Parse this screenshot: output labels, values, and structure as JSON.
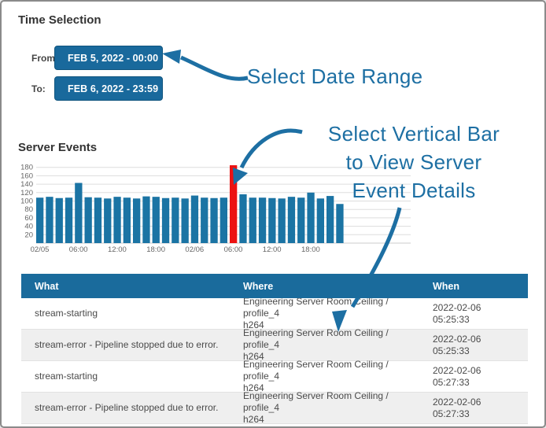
{
  "time_selection": {
    "title": "Time Selection",
    "from_label": "From:",
    "to_label": "To:",
    "from_value": "FEB 5, 2022 - 00:00",
    "to_value": "FEB 6, 2022 - 23:59"
  },
  "annotations": {
    "date_range": "Select Date Range",
    "bar_line1": "Select Vertical Bar",
    "bar_line2": "to View Server",
    "bar_line3": "Event Details"
  },
  "chart_data": {
    "type": "bar",
    "title": "Server Events",
    "x_tick_labels": [
      "02/05",
      "06:00",
      "12:00",
      "18:00",
      "02/06",
      "06:00",
      "12:00",
      "18:00"
    ],
    "values": [
      108,
      110,
      107,
      108,
      143,
      109,
      108,
      106,
      110,
      108,
      106,
      111,
      110,
      107,
      108,
      106,
      113,
      108,
      107,
      108,
      185,
      116,
      108,
      108,
      107,
      106,
      110,
      108,
      120,
      106,
      112,
      93
    ],
    "highlight_index": 20,
    "bar_color": "#1b74a4",
    "highlight_color": "#ec1212",
    "yticks": [
      20,
      40,
      60,
      80,
      100,
      120,
      140,
      160,
      180
    ],
    "ylim": [
      0,
      190
    ],
    "grid": true,
    "legend": false
  },
  "table": {
    "headers": [
      "What",
      "Where",
      "When"
    ],
    "rows": [
      {
        "what": "stream-starting",
        "where": [
          "Engineering Server Room Ceiling / profile_4",
          "h264"
        ],
        "when": [
          "2022-02-06",
          "05:25:33"
        ]
      },
      {
        "what": "stream-error - Pipeline stopped due to error.",
        "where": [
          "Engineering Server Room Ceiling / profile_4",
          "h264"
        ],
        "when": [
          "2022-02-06",
          "05:25:33"
        ]
      },
      {
        "what": "stream-starting",
        "where": [
          "Engineering Server Room Ceiling / profile_4",
          "h264"
        ],
        "when": [
          "2022-02-06",
          "05:27:33"
        ]
      },
      {
        "what": "stream-error - Pipeline stopped due to error.",
        "where": [
          "Engineering Server Room Ceiling / profile_4",
          "h264"
        ],
        "when": [
          "2022-02-06",
          "05:27:33"
        ]
      }
    ]
  },
  "colors": {
    "accent_blue": "#19699c",
    "annotation_blue": "#1d6fa3",
    "bar_blue": "#1b74a4",
    "bar_red": "#ec1212",
    "table_header": "#1a6b9c"
  }
}
